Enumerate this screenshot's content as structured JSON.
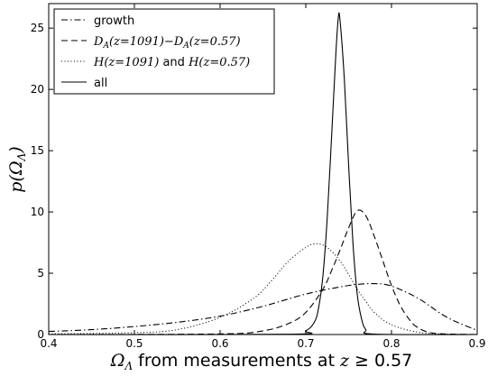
{
  "chart_data": {
    "type": "line",
    "xlabel_parts": {
      "symbol": "Ω",
      "symbol_sub": "Λ",
      "text": "from measurements at",
      "var": "z",
      "rel": "≥",
      "value": "0.57"
    },
    "ylabel_parts": {
      "p": "p",
      "open": "(",
      "symbol": "Ω",
      "symbol_sub": "Λ",
      "close": ")"
    },
    "xlim": [
      0.4,
      0.9
    ],
    "ylim": [
      0,
      27
    ],
    "x_ticks": [
      "0.4",
      "0.5",
      "0.6",
      "0.7",
      "0.8",
      "0.9"
    ],
    "y_ticks": [
      "0",
      "5",
      "10",
      "15",
      "20",
      "25"
    ],
    "x_tick_values": [
      0.4,
      0.5,
      0.6,
      0.7,
      0.8,
      0.9
    ],
    "y_tick_values": [
      0,
      5,
      10,
      15,
      20,
      25
    ],
    "grid": false,
    "legend_position": "top-left",
    "legend": [
      {
        "label": "growth",
        "style": "dashdot"
      },
      {
        "label": "D_A(z=1091)−D_A(z=0.57)",
        "style": "dashed",
        "parts": [
          "D",
          "A",
          "(z=1091)−",
          "D",
          "A",
          "(z=0.57)"
        ]
      },
      {
        "label": "H(z=1091) and H(z=0.57)",
        "style": "dotted",
        "parts": [
          "H",
          "(z=1091)",
          " and ",
          "H",
          "(z=0.57)"
        ]
      },
      {
        "label": "all",
        "style": "solid"
      }
    ],
    "series": [
      {
        "name": "growth",
        "style": "dashdot",
        "x": [
          0.4,
          0.45,
          0.5,
          0.55,
          0.6,
          0.65,
          0.7,
          0.75,
          0.78,
          0.8,
          0.83,
          0.86,
          0.88,
          0.9
        ],
        "y": [
          0.25,
          0.4,
          0.65,
          1.0,
          1.5,
          2.3,
          3.3,
          4.0,
          4.15,
          3.95,
          3.0,
          1.6,
          0.9,
          0.35
        ]
      },
      {
        "name": "D_A(z=1091)−D_A(z=0.57)",
        "style": "dashed",
        "x": [
          0.4,
          0.6,
          0.65,
          0.68,
          0.7,
          0.72,
          0.73,
          0.74,
          0.75,
          0.76,
          0.77,
          0.78,
          0.79,
          0.8,
          0.81,
          0.82,
          0.83,
          0.85,
          0.9
        ],
        "y": [
          0,
          0.05,
          0.3,
          0.9,
          1.8,
          3.7,
          5.2,
          6.9,
          8.7,
          10.1,
          9.7,
          8.0,
          6.0,
          4.0,
          2.4,
          1.3,
          0.6,
          0.1,
          0
        ]
      },
      {
        "name": "H(z=1091) and H(z=0.57)",
        "style": "dotted",
        "x": [
          0.4,
          0.5,
          0.55,
          0.6,
          0.64,
          0.66,
          0.68,
          0.7,
          0.71,
          0.72,
          0.73,
          0.74,
          0.75,
          0.76,
          0.77,
          0.78,
          0.8,
          0.83,
          0.86,
          0.9
        ],
        "y": [
          0.05,
          0.15,
          0.4,
          1.4,
          3.0,
          4.4,
          6.0,
          7.1,
          7.4,
          7.3,
          6.8,
          6.0,
          4.9,
          3.7,
          2.7,
          1.8,
          0.8,
          0.2,
          0.05,
          0
        ]
      },
      {
        "name": "all",
        "style": "solid",
        "x": [
          0.4,
          0.68,
          0.7,
          0.71,
          0.715,
          0.72,
          0.725,
          0.73,
          0.735,
          0.738,
          0.74,
          0.745,
          0.75,
          0.755,
          0.76,
          0.765,
          0.77,
          0.78,
          0.9
        ],
        "y": [
          0,
          0.02,
          0.3,
          1.0,
          2.2,
          4.8,
          9.5,
          16.0,
          22.8,
          25.9,
          25.6,
          20.8,
          13.8,
          7.5,
          3.3,
          1.3,
          0.4,
          0.03,
          0
        ]
      }
    ]
  }
}
